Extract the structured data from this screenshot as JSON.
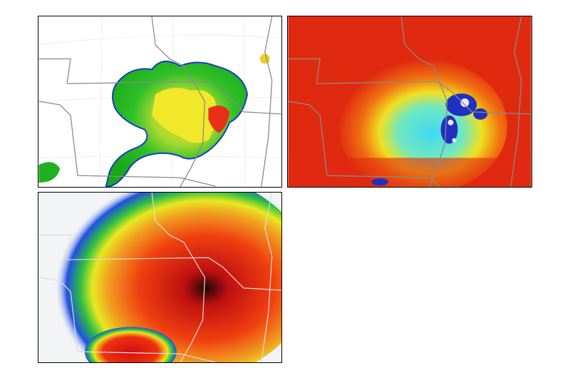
{
  "figure": {
    "panels": [
      {
        "id": "reflectivity-map",
        "background": "#ffffff"
      },
      {
        "id": "field-map-red-cyan",
        "background": "#e02a10"
      },
      {
        "id": "accumulation-map",
        "background": "#f2f4f6"
      }
    ],
    "colors": {
      "border": "#000000",
      "state_lines": "#808080",
      "green": "#22c020",
      "yellow": "#f4f020",
      "red": "#e82010",
      "blue": "#1830d0",
      "cyan": "#40e0f0",
      "dark": "#200808"
    }
  }
}
